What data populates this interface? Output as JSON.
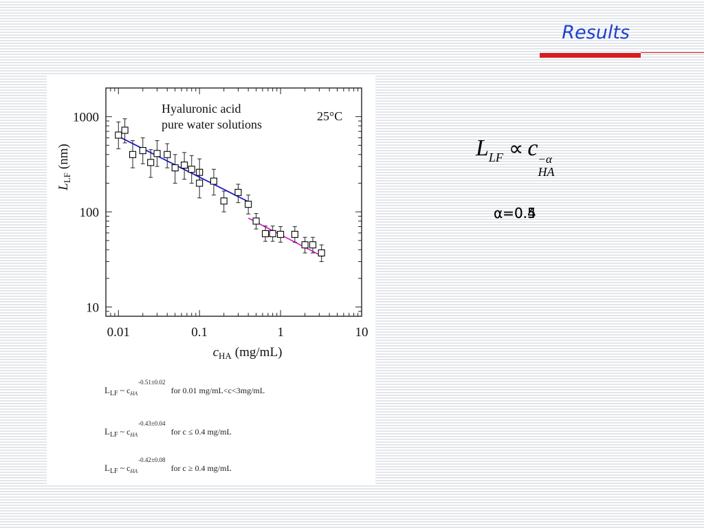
{
  "slide": {
    "title": "Results",
    "accent_color": "#d42020",
    "title_color": "#1f3fd1"
  },
  "chart_data": {
    "type": "scatter",
    "x_scale": "log",
    "y_scale": "log",
    "xlim": [
      0.007,
      10
    ],
    "ylim": [
      8,
      2000
    ],
    "xlabel_base": "c",
    "xlabel_sub": "HA",
    "xlabel_unit": "(mg/mL)",
    "ylabel_base": "L",
    "ylabel_sub": "LF",
    "ylabel_unit": "(nm)",
    "x_ticks": [
      {
        "value": 0.01,
        "label": "0.01"
      },
      {
        "value": 0.1,
        "label": "0.1"
      },
      {
        "value": 1,
        "label": "1"
      },
      {
        "value": 10,
        "label": "10"
      }
    ],
    "y_ticks": [
      {
        "value": 10,
        "label": "10"
      },
      {
        "value": 100,
        "label": "100"
      },
      {
        "value": 1000,
        "label": "1000"
      }
    ],
    "annotation_line1": "Hyaluronic acid",
    "annotation_line2": "pure water solutions",
    "temperature": "25°C",
    "series": [
      {
        "marker": "square-open",
        "color": "#000000",
        "points": [
          {
            "x": 0.01,
            "y": 640,
            "lo": 460,
            "hi": 880
          },
          {
            "x": 0.012,
            "y": 720,
            "lo": 530,
            "hi": 950
          },
          {
            "x": 0.015,
            "y": 400,
            "lo": 290,
            "hi": 560
          },
          {
            "x": 0.02,
            "y": 440,
            "lo": 320,
            "hi": 600
          },
          {
            "x": 0.025,
            "y": 330,
            "lo": 230,
            "hi": 450
          },
          {
            "x": 0.03,
            "y": 410,
            "lo": 300,
            "hi": 560
          },
          {
            "x": 0.04,
            "y": 400,
            "lo": 290,
            "hi": 520
          },
          {
            "x": 0.05,
            "y": 290,
            "lo": 200,
            "hi": 400
          },
          {
            "x": 0.065,
            "y": 310,
            "lo": 220,
            "hi": 420
          },
          {
            "x": 0.08,
            "y": 280,
            "lo": 200,
            "hi": 390
          },
          {
            "x": 0.1,
            "y": 260,
            "lo": 190,
            "hi": 360
          },
          {
            "x": 0.1,
            "y": 200,
            "lo": 140,
            "hi": 280
          },
          {
            "x": 0.15,
            "y": 210,
            "lo": 150,
            "hi": 280
          },
          {
            "x": 0.2,
            "y": 130,
            "lo": 100,
            "hi": 165
          },
          {
            "x": 0.3,
            "y": 160,
            "lo": 125,
            "hi": 195
          },
          {
            "x": 0.4,
            "y": 120,
            "lo": 95,
            "hi": 150
          },
          {
            "x": 0.5,
            "y": 80,
            "lo": 66,
            "hi": 96
          },
          {
            "x": 0.65,
            "y": 59,
            "lo": 49,
            "hi": 71
          },
          {
            "x": 0.8,
            "y": 59,
            "lo": 49,
            "hi": 71
          },
          {
            "x": 1.0,
            "y": 58,
            "lo": 48,
            "hi": 70
          },
          {
            "x": 1.5,
            "y": 58,
            "lo": 48,
            "hi": 70
          },
          {
            "x": 2.0,
            "y": 45,
            "lo": 37,
            "hi": 54
          },
          {
            "x": 2.5,
            "y": 45,
            "lo": 37,
            "hi": 54
          },
          {
            "x": 3.2,
            "y": 37,
            "lo": 30,
            "hi": 45
          }
        ]
      }
    ],
    "fits": [
      {
        "color": "#1a1acc",
        "x1": 0.01,
        "y1": 620,
        "x2": 0.4,
        "y2": 128
      },
      {
        "color": "#e026c8",
        "x1": 0.4,
        "y1": 86,
        "x2": 3.3,
        "y2": 34
      }
    ]
  },
  "equations": [
    {
      "base": "L",
      "sub1": "LF",
      "tilde": "~ c",
      "sub2": "HA",
      "exp": "-0.51±0.02",
      "cond": "for 0.01 mg/mL<c<3mg/mL"
    },
    {
      "base": "L",
      "sub1": "LF",
      "tilde": "~ c",
      "sub2": "HA",
      "exp": "-0.43±0.04",
      "cond": "for c ≤ 0.4 mg/mL"
    },
    {
      "base": "L",
      "sub1": "LF",
      "tilde": "~ c",
      "sub2": "HA",
      "exp": "-0.42±0.08",
      "cond": "for c ≥ 0.4 mg/mL"
    }
  ],
  "formula": {
    "lhs": "L",
    "lhs_sub": "LF",
    "prop": "∝",
    "rhs": "c",
    "rhs_sub": "HA",
    "rhs_sup": "−α"
  },
  "alpha": {
    "text1": "α=0.5",
    "text2": "α=0.4"
  }
}
